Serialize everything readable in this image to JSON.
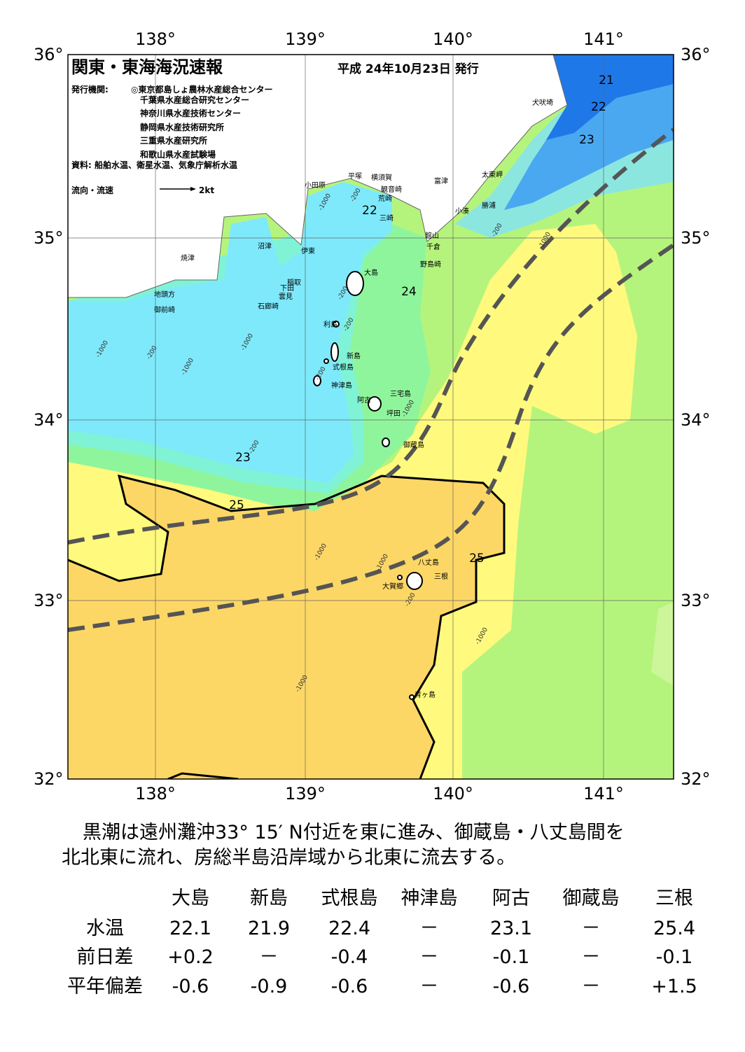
{
  "header": {
    "title": "関東・東海海況速報",
    "date": "平成 24年10月23日 発行",
    "issuer_label": "発行機関:",
    "issuers": [
      "◎東京都島しょ農林水産総合センター",
      "千葉県水産総合研究センター",
      "神奈川県水産技術センター",
      "静岡県水産技術研究所",
      "三重県水産研究所",
      "和歌山県水産試験場"
    ],
    "source": "資料: 船舶水温、衛星水温、気象庁解析水温",
    "legend": "流向・流速",
    "legend_unit": "2kt"
  },
  "map": {
    "lon_labels": [
      "138°",
      "139°",
      "140°",
      "141°"
    ],
    "lat_labels": [
      "36°",
      "35°",
      "34°",
      "33°",
      "32°"
    ],
    "places": [
      "小田原",
      "平塚",
      "横須賀",
      "観音崎",
      "富津",
      "荒崎",
      "三崎",
      "館山",
      "千倉",
      "野島崎",
      "小湊",
      "勝浦",
      "太東岬",
      "犬吠埼",
      "沼津",
      "伊東",
      "焼津",
      "稲取",
      "下田",
      "雲見",
      "石廊崎",
      "地頭方",
      "御前崎",
      "大島",
      "利島",
      "新島",
      "式根島",
      "神津島",
      "三宅島",
      "阿古",
      "坪田",
      "御蔵島",
      "八丈島",
      "三根",
      "大賀郷",
      "青ヶ島"
    ],
    "isotherms": [
      "21",
      "22",
      "23",
      "22",
      "24",
      "23",
      "25",
      "25"
    ],
    "depths": [
      "-200",
      "-1000"
    ]
  },
  "summary": [
    "黒潮は遠州灘沖33° 15′ N付近を東に進み、御蔵島・八丈島間を",
    "北北東に流れ、房総半島沿岸域から北東に流去する。"
  ],
  "table": {
    "columns": [
      "大島",
      "新島",
      "式根島",
      "神津島",
      "阿古",
      "御蔵島",
      "三根"
    ],
    "rows": [
      {
        "label": "水温",
        "cells": [
          "22.1",
          "21.9",
          "22.4",
          "－",
          "23.1",
          "－",
          "25.4"
        ]
      },
      {
        "label": "前日差",
        "cells": [
          "+0.2",
          "－",
          "-0.4",
          "－",
          "-0.1",
          "－",
          "-0.1"
        ]
      },
      {
        "label": "平年偏差",
        "cells": [
          "-0.6",
          "-0.9",
          "-0.6",
          "－",
          "-0.6",
          "－",
          "+1.5"
        ]
      }
    ]
  }
}
